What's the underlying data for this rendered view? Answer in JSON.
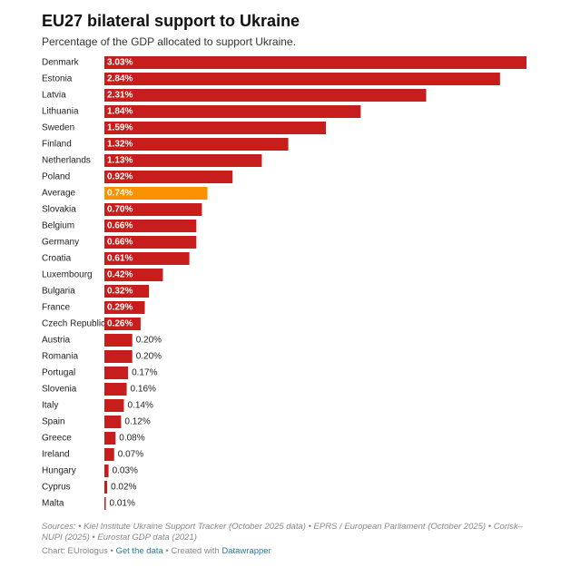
{
  "chart_data": {
    "type": "bar",
    "title": "EU27 bilateral support to Ukraine",
    "subtitle": "Percentage of the GDP allocated to support Ukraine.",
    "categories": [
      "Denmark",
      "Estonia",
      "Latvia",
      "Lithuania",
      "Sweden",
      "Finland",
      "Netherlands",
      "Poland",
      "Average",
      "Slovakia",
      "Belgium",
      "Germany",
      "Croatia",
      "Luxembourg",
      "Bulgaria",
      "France",
      "Czech Republic",
      "Austria",
      "Romania",
      "Portugal",
      "Slovenia",
      "Italy",
      "Spain",
      "Greece",
      "Ireland",
      "Hungary",
      "Cyprus",
      "Malta"
    ],
    "values": [
      3.03,
      2.84,
      2.31,
      1.84,
      1.59,
      1.32,
      1.13,
      0.92,
      0.74,
      0.7,
      0.66,
      0.66,
      0.61,
      0.42,
      0.32,
      0.29,
      0.26,
      0.2,
      0.2,
      0.17,
      0.16,
      0.14,
      0.12,
      0.08,
      0.07,
      0.03,
      0.02,
      0.01
    ],
    "value_labels": [
      "3.03%",
      "2.84%",
      "2.31%",
      "1.84%",
      "1.59%",
      "1.32%",
      "1.13%",
      "0.92%",
      "0.74%",
      "0.70%",
      "0.66%",
      "0.66%",
      "0.61%",
      "0.42%",
      "0.32%",
      "0.29%",
      "0.26%",
      "0.20%",
      "0.20%",
      "0.17%",
      "0.16%",
      "0.14%",
      "0.12%",
      "0.08%",
      "0.07%",
      "0.03%",
      "0.02%",
      "0.01%"
    ],
    "colors": [
      "#c71e1d",
      "#c71e1d",
      "#c71e1d",
      "#c71e1d",
      "#c71e1d",
      "#c71e1d",
      "#c71e1d",
      "#c71e1d",
      "#fa9200",
      "#c71e1d",
      "#c71e1d",
      "#c71e1d",
      "#c71e1d",
      "#c71e1d",
      "#c71e1d",
      "#c71e1d",
      "#c71e1d",
      "#c71e1d",
      "#c71e1d",
      "#c71e1d",
      "#c71e1d",
      "#c71e1d",
      "#c71e1d",
      "#c71e1d",
      "#c71e1d",
      "#c71e1d",
      "#c71e1d",
      "#c71e1d"
    ],
    "source": "Sources: • Kiel Institute Ukraine Support Tracker (October 2025 data) • EPRS / European Parliament (October 2025) • Corisk–NUPI (2025) • Eurostat GDP data (2021)",
    "credit": {
      "prefix": "Chart: EUrologus •",
      "data_link": "Get the data",
      "middle": "• Created with",
      "tool_link": "Datawrapper"
    }
  }
}
